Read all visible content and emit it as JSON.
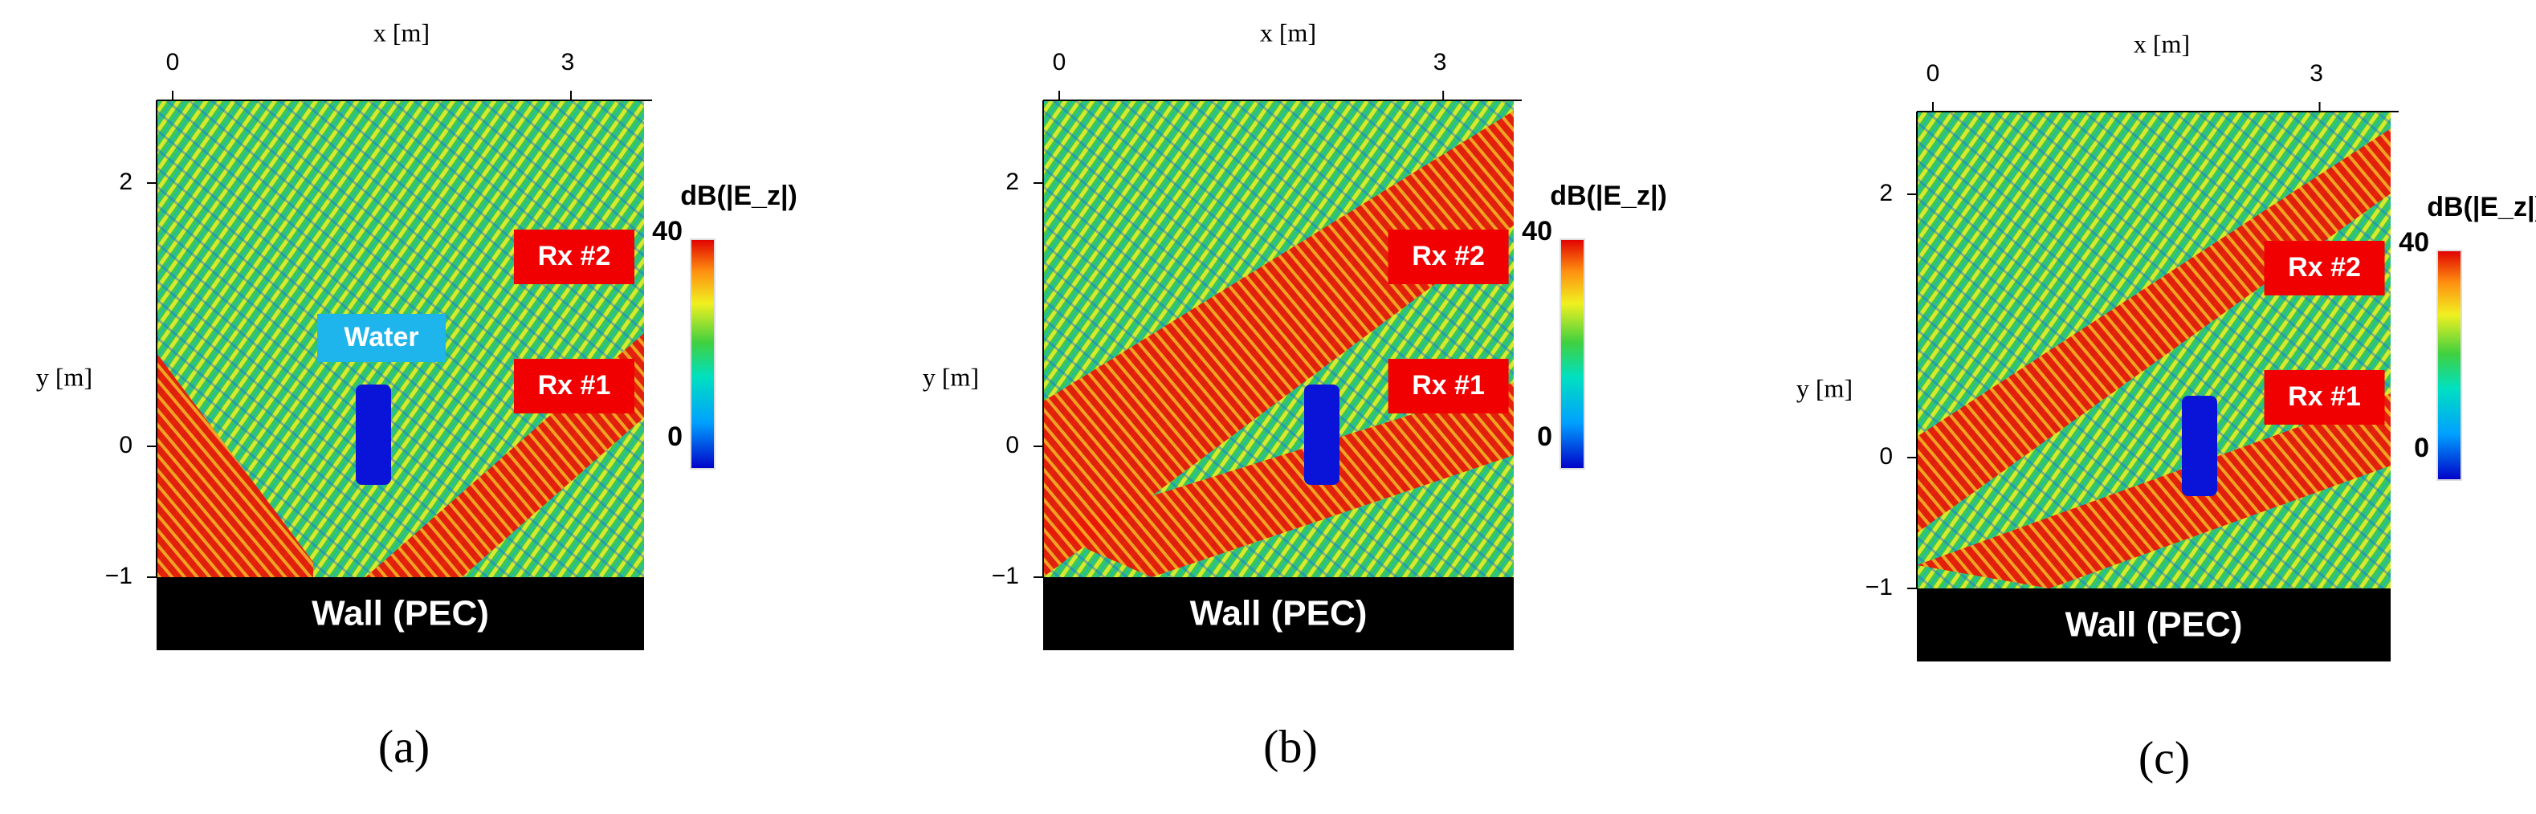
{
  "panels": [
    {
      "x_label": "x [m]",
      "y_label": "y [m]",
      "x_ticks": [
        "0",
        "3"
      ],
      "y_ticks": [
        "2",
        "0",
        "−1"
      ],
      "colorbar_title": "dB(|E_z|)",
      "colorbar_ticks": [
        "40",
        "0"
      ],
      "receivers": [
        "Rx #2",
        "Rx #1"
      ],
      "obstacle": "Water",
      "wall": "Wall (PEC)",
      "caption": "(a)"
    },
    {
      "x_label": "x [m]",
      "y_label": "y [m]",
      "x_ticks": [
        "0",
        "3"
      ],
      "y_ticks": [
        "2",
        "0",
        "−1"
      ],
      "colorbar_title": "dB(|E_z|)",
      "colorbar_ticks": [
        "40",
        "0"
      ],
      "receivers": [
        "Rx #2",
        "Rx #1"
      ],
      "wall": "Wall (PEC)",
      "caption": "(b)"
    },
    {
      "x_label": "x [m]",
      "y_label": "y [m]",
      "x_ticks": [
        "0",
        "3"
      ],
      "y_ticks": [
        "2",
        "0",
        "−1"
      ],
      "colorbar_title": "dB(|E_z|)",
      "colorbar_ticks": [
        "40",
        "0"
      ],
      "receivers": [
        "Rx #2",
        "Rx #1"
      ],
      "wall": "Wall (PEC)",
      "caption": "(c)"
    }
  ]
}
